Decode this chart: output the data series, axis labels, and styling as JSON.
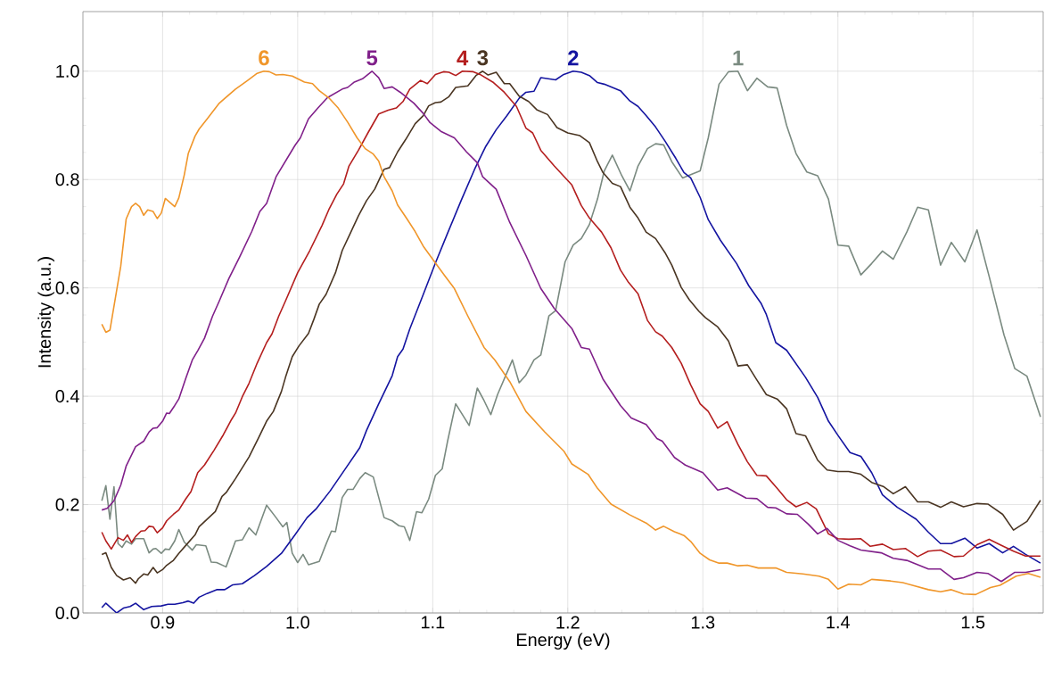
{
  "chart_data": {
    "type": "line",
    "xlabel": "Energy (eV)",
    "ylabel": "Intensity (a.u.)",
    "xlim": [
      0.841,
      1.552
    ],
    "ylim": [
      0,
      1.11
    ],
    "xticks": [
      0.9,
      {
        "value": 1.0,
        "label": "1.0"
      },
      1.1,
      1.2,
      1.3,
      1.4,
      1.5
    ],
    "yticks": [
      {
        "value": 0,
        "label": "0.0"
      },
      0.2,
      0.4,
      0.6,
      0.8,
      {
        "value": 1.0,
        "label": "1.0"
      }
    ],
    "grid": true,
    "marker": "none",
    "series": [
      {
        "name": "1",
        "color": "#7a8a80",
        "x": [
          0.855,
          0.858,
          0.861,
          0.864,
          0.867,
          0.87,
          0.873,
          0.877,
          0.88,
          0.886,
          0.89,
          0.893,
          0.895,
          0.899,
          0.902,
          0.905,
          0.909,
          0.912,
          0.916,
          0.922,
          0.925,
          0.932,
          0.936,
          0.94,
          0.947,
          0.954,
          0.959,
          0.964,
          0.969,
          0.977,
          0.984,
          0.989,
          0.992,
          0.996,
          1.0,
          1.004,
          1.008,
          1.016,
          1.021,
          1.025,
          1.028,
          1.033,
          1.037,
          1.041,
          1.046,
          1.05,
          1.056,
          1.064,
          1.07,
          1.075,
          1.079,
          1.083,
          1.088,
          1.092,
          1.097,
          1.102,
          1.107,
          1.111,
          1.117,
          1.127,
          1.133,
          1.138,
          1.143,
          1.148,
          1.159,
          1.164,
          1.169,
          1.175,
          1.18,
          1.186,
          1.191,
          1.198,
          1.204,
          1.21,
          1.216,
          1.222,
          1.227,
          1.233,
          1.24,
          1.246,
          1.252,
          1.259,
          1.265,
          1.271,
          1.277,
          1.285,
          1.291,
          1.298,
          1.304,
          1.312,
          1.319,
          1.326,
          1.333,
          1.34,
          1.348,
          1.355,
          1.362,
          1.369,
          1.377,
          1.385,
          1.393,
          1.4,
          1.408,
          1.417,
          1.425,
          1.433,
          1.441,
          1.451,
          1.459,
          1.467,
          1.476,
          1.484,
          1.494,
          1.503,
          1.512,
          1.523,
          1.531,
          1.54,
          1.55
        ],
        "values": [
          0.207,
          0.235,
          0.173,
          0.233,
          0.128,
          0.121,
          0.133,
          0.127,
          0.137,
          0.137,
          0.111,
          0.118,
          0.119,
          0.11,
          0.118,
          0.117,
          0.133,
          0.154,
          0.131,
          0.116,
          0.126,
          0.124,
          0.094,
          0.093,
          0.085,
          0.133,
          0.135,
          0.157,
          0.144,
          0.199,
          0.176,
          0.159,
          0.167,
          0.11,
          0.093,
          0.108,
          0.089,
          0.095,
          0.127,
          0.151,
          0.15,
          0.213,
          0.228,
          0.228,
          0.248,
          0.259,
          0.251,
          0.176,
          0.17,
          0.161,
          0.159,
          0.134,
          0.187,
          0.185,
          0.21,
          0.254,
          0.266,
          0.317,
          0.386,
          0.346,
          0.415,
          0.392,
          0.366,
          0.403,
          0.467,
          0.425,
          0.439,
          0.467,
          0.476,
          0.548,
          0.558,
          0.648,
          0.679,
          0.691,
          0.717,
          0.764,
          0.816,
          0.845,
          0.807,
          0.779,
          0.825,
          0.857,
          0.866,
          0.864,
          0.833,
          0.803,
          0.809,
          0.816,
          0.877,
          0.976,
          0.999,
          1.0,
          0.964,
          0.987,
          0.971,
          0.969,
          0.9,
          0.848,
          0.814,
          0.807,
          0.764,
          0.679,
          0.677,
          0.624,
          0.645,
          0.668,
          0.653,
          0.703,
          0.749,
          0.744,
          0.642,
          0.684,
          0.648,
          0.707,
          0.621,
          0.513,
          0.451,
          0.437,
          0.362
        ]
      },
      {
        "name": "2",
        "color": "#1414a0",
        "x": [
          0.855,
          0.858,
          0.862,
          0.866,
          0.871,
          0.876,
          0.88,
          0.886,
          0.892,
          0.899,
          0.904,
          0.909,
          0.915,
          0.919,
          0.923,
          0.927,
          0.933,
          0.94,
          0.946,
          0.952,
          0.959,
          0.968,
          0.977,
          0.988,
          0.998,
          1.007,
          1.014,
          1.024,
          1.035,
          1.046,
          1.051,
          1.06,
          1.07,
          1.074,
          1.078,
          1.083,
          1.093,
          1.102,
          1.111,
          1.121,
          1.131,
          1.139,
          1.147,
          1.155,
          1.164,
          1.169,
          1.175,
          1.18,
          1.191,
          1.197,
          1.204,
          1.21,
          1.216,
          1.222,
          1.227,
          1.239,
          1.246,
          1.252,
          1.258,
          1.265,
          1.272,
          1.28,
          1.286,
          1.291,
          1.298,
          1.304,
          1.313,
          1.325,
          1.334,
          1.343,
          1.347,
          1.354,
          1.362,
          1.376,
          1.385,
          1.393,
          1.4,
          1.409,
          1.417,
          1.425,
          1.433,
          1.444,
          1.458,
          1.467,
          1.476,
          1.484,
          1.494,
          1.503,
          1.512,
          1.522,
          1.53,
          1.539,
          1.55
        ],
        "values": [
          0.01,
          0.018,
          0.009,
          0,
          0.009,
          0.012,
          0.018,
          0.006,
          0.012,
          0.013,
          0.016,
          0.016,
          0.019,
          0.022,
          0.018,
          0.029,
          0.036,
          0.043,
          0.043,
          0.052,
          0.054,
          0.069,
          0.086,
          0.11,
          0.144,
          0.176,
          0.193,
          0.225,
          0.265,
          0.305,
          0.337,
          0.386,
          0.438,
          0.473,
          0.487,
          0.524,
          0.588,
          0.646,
          0.701,
          0.761,
          0.819,
          0.86,
          0.892,
          0.918,
          0.95,
          0.961,
          0.963,
          0.988,
          0.984,
          0.994,
          1.0,
          0.998,
          0.992,
          0.979,
          0.976,
          0.964,
          0.945,
          0.935,
          0.918,
          0.897,
          0.871,
          0.839,
          0.813,
          0.803,
          0.767,
          0.726,
          0.688,
          0.645,
          0.604,
          0.572,
          0.551,
          0.499,
          0.485,
          0.435,
          0.398,
          0.354,
          0.328,
          0.296,
          0.289,
          0.259,
          0.218,
          0.195,
          0.173,
          0.149,
          0.128,
          0.128,
          0.138,
          0.12,
          0.128,
          0.111,
          0.123,
          0.108,
          0.092
        ]
      },
      {
        "name": "3",
        "color": "#4a3522",
        "x": [
          0.855,
          0.858,
          0.862,
          0.866,
          0.871,
          0.876,
          0.88,
          0.882,
          0.886,
          0.889,
          0.893,
          0.896,
          0.9,
          0.903,
          0.908,
          0.912,
          0.918,
          0.924,
          0.927,
          0.933,
          0.939,
          0.944,
          0.947,
          0.954,
          0.959,
          0.964,
          0.971,
          0.977,
          0.982,
          0.988,
          0.991,
          0.996,
          1.001,
          1.008,
          1.012,
          1.016,
          1.021,
          1.028,
          1.033,
          1.039,
          1.045,
          1.051,
          1.057,
          1.064,
          1.068,
          1.074,
          1.08,
          1.087,
          1.093,
          1.097,
          1.102,
          1.106,
          1.112,
          1.117,
          1.126,
          1.132,
          1.137,
          1.141,
          1.147,
          1.153,
          1.157,
          1.164,
          1.171,
          1.177,
          1.185,
          1.192,
          1.2,
          1.209,
          1.216,
          1.222,
          1.226,
          1.233,
          1.239,
          1.246,
          1.252,
          1.258,
          1.265,
          1.272,
          1.277,
          1.284,
          1.29,
          1.297,
          1.302,
          1.311,
          1.319,
          1.326,
          1.333,
          1.34,
          1.347,
          1.355,
          1.362,
          1.369,
          1.376,
          1.385,
          1.392,
          1.4,
          1.408,
          1.417,
          1.425,
          1.434,
          1.441,
          1.45,
          1.459,
          1.467,
          1.476,
          1.484,
          1.493,
          1.503,
          1.511,
          1.522,
          1.53,
          1.54,
          1.55
        ],
        "values": [
          0.108,
          0.111,
          0.084,
          0.069,
          0.061,
          0.065,
          0.055,
          0.063,
          0.072,
          0.07,
          0.084,
          0.074,
          0.08,
          0.088,
          0.097,
          0.11,
          0.127,
          0.144,
          0.159,
          0.173,
          0.187,
          0.215,
          0.222,
          0.248,
          0.268,
          0.288,
          0.323,
          0.354,
          0.372,
          0.409,
          0.435,
          0.473,
          0.493,
          0.516,
          0.542,
          0.57,
          0.588,
          0.628,
          0.669,
          0.701,
          0.733,
          0.761,
          0.782,
          0.819,
          0.822,
          0.851,
          0.874,
          0.903,
          0.918,
          0.936,
          0.942,
          0.943,
          0.953,
          0.97,
          0.973,
          0.992,
          1.0,
          0.993,
          0.998,
          0.977,
          0.977,
          0.954,
          0.944,
          0.929,
          0.92,
          0.896,
          0.886,
          0.881,
          0.868,
          0.833,
          0.813,
          0.793,
          0.787,
          0.749,
          0.729,
          0.703,
          0.691,
          0.665,
          0.642,
          0.601,
          0.578,
          0.557,
          0.545,
          0.528,
          0.502,
          0.456,
          0.458,
          0.43,
          0.403,
          0.395,
          0.377,
          0.331,
          0.327,
          0.282,
          0.264,
          0.261,
          0.261,
          0.256,
          0.241,
          0.233,
          0.22,
          0.233,
          0.205,
          0.205,
          0.195,
          0.205,
          0.196,
          0.202,
          0.201,
          0.182,
          0.153,
          0.169,
          0.208
        ]
      },
      {
        "name": "4",
        "color": "#b41e1e",
        "x": [
          0.855,
          0.858,
          0.862,
          0.867,
          0.871,
          0.874,
          0.877,
          0.88,
          0.884,
          0.887,
          0.89,
          0.893,
          0.896,
          0.9,
          0.903,
          0.908,
          0.912,
          0.917,
          0.921,
          0.926,
          0.931,
          0.938,
          0.945,
          0.951,
          0.954,
          0.959,
          0.964,
          0.97,
          0.977,
          0.981,
          0.986,
          0.991,
          1.0,
          1.009,
          1.018,
          1.023,
          1.029,
          1.034,
          1.038,
          1.045,
          1.052,
          1.06,
          1.067,
          1.073,
          1.078,
          1.083,
          1.091,
          1.096,
          1.102,
          1.108,
          1.112,
          1.117,
          1.122,
          1.13,
          1.135,
          1.145,
          1.153,
          1.162,
          1.169,
          1.174,
          1.18,
          1.19,
          1.203,
          1.21,
          1.216,
          1.225,
          1.232,
          1.239,
          1.245,
          1.252,
          1.259,
          1.265,
          1.27,
          1.277,
          1.284,
          1.291,
          1.298,
          1.304,
          1.311,
          1.318,
          1.326,
          1.333,
          1.34,
          1.347,
          1.355,
          1.362,
          1.369,
          1.377,
          1.384,
          1.393,
          1.4,
          1.408,
          1.417,
          1.424,
          1.433,
          1.441,
          1.45,
          1.459,
          1.467,
          1.476,
          1.486,
          1.493,
          1.503,
          1.512,
          1.52,
          1.53,
          1.539,
          1.55
        ],
        "values": [
          0.149,
          0.133,
          0.118,
          0.139,
          0.134,
          0.144,
          0.13,
          0.141,
          0.151,
          0.152,
          0.16,
          0.159,
          0.148,
          0.157,
          0.17,
          0.182,
          0.19,
          0.21,
          0.224,
          0.259,
          0.273,
          0.3,
          0.329,
          0.357,
          0.369,
          0.399,
          0.424,
          0.461,
          0.499,
          0.515,
          0.548,
          0.576,
          0.628,
          0.669,
          0.715,
          0.744,
          0.773,
          0.792,
          0.825,
          0.854,
          0.886,
          0.921,
          0.928,
          0.932,
          0.944,
          0.967,
          0.983,
          0.977,
          0.994,
          0.999,
          0.998,
          0.992,
          1.0,
          0.999,
          0.994,
          0.979,
          0.961,
          0.935,
          0.895,
          0.886,
          0.854,
          0.825,
          0.79,
          0.752,
          0.729,
          0.703,
          0.674,
          0.633,
          0.61,
          0.589,
          0.54,
          0.519,
          0.511,
          0.49,
          0.461,
          0.421,
          0.386,
          0.372,
          0.341,
          0.353,
          0.311,
          0.279,
          0.254,
          0.253,
          0.23,
          0.209,
          0.196,
          0.204,
          0.192,
          0.146,
          0.137,
          0.136,
          0.137,
          0.123,
          0.127,
          0.117,
          0.119,
          0.104,
          0.114,
          0.116,
          0.104,
          0.105,
          0.126,
          0.136,
          0.126,
          0.114,
          0.105,
          0.105
        ]
      },
      {
        "name": "5",
        "color": "#80208a",
        "x": [
          0.855,
          0.859,
          0.864,
          0.869,
          0.873,
          0.88,
          0.886,
          0.89,
          0.893,
          0.896,
          0.9,
          0.903,
          0.905,
          0.909,
          0.912,
          0.917,
          0.922,
          0.926,
          0.931,
          0.937,
          0.942,
          0.949,
          0.957,
          0.966,
          0.972,
          0.977,
          0.984,
          0.991,
          0.998,
          1.002,
          1.008,
          1.015,
          1.022,
          1.033,
          1.037,
          1.042,
          1.048,
          1.055,
          1.06,
          1.064,
          1.07,
          1.076,
          1.086,
          1.093,
          1.098,
          1.106,
          1.116,
          1.125,
          1.133,
          1.137,
          1.147,
          1.157,
          1.169,
          1.18,
          1.19,
          1.203,
          1.21,
          1.216,
          1.226,
          1.239,
          1.247,
          1.258,
          1.266,
          1.27,
          1.279,
          1.287,
          1.3,
          1.311,
          1.318,
          1.332,
          1.34,
          1.348,
          1.354,
          1.362,
          1.37,
          1.378,
          1.385,
          1.392,
          1.4,
          1.409,
          1.417,
          1.432,
          1.441,
          1.451,
          1.467,
          1.476,
          1.486,
          1.493,
          1.503,
          1.511,
          1.521,
          1.531,
          1.539,
          1.55
        ],
        "values": [
          0.19,
          0.193,
          0.207,
          0.236,
          0.271,
          0.307,
          0.317,
          0.334,
          0.341,
          0.342,
          0.354,
          0.369,
          0.368,
          0.383,
          0.395,
          0.432,
          0.467,
          0.484,
          0.507,
          0.548,
          0.576,
          0.617,
          0.657,
          0.704,
          0.741,
          0.756,
          0.805,
          0.834,
          0.863,
          0.877,
          0.912,
          0.932,
          0.951,
          0.967,
          0.97,
          0.98,
          0.986,
          1.0,
          0.988,
          0.968,
          0.971,
          0.961,
          0.941,
          0.922,
          0.905,
          0.889,
          0.877,
          0.851,
          0.831,
          0.805,
          0.782,
          0.721,
          0.66,
          0.599,
          0.562,
          0.525,
          0.49,
          0.487,
          0.432,
          0.383,
          0.36,
          0.348,
          0.322,
          0.317,
          0.287,
          0.273,
          0.259,
          0.227,
          0.231,
          0.212,
          0.211,
          0.195,
          0.194,
          0.183,
          0.182,
          0.164,
          0.146,
          0.156,
          0.134,
          0.124,
          0.116,
          0.111,
          0.101,
          0.097,
          0.081,
          0.081,
          0.062,
          0.065,
          0.075,
          0.073,
          0.058,
          0.075,
          0.075,
          0.08
        ]
      },
      {
        "name": "6",
        "color": "#f0962a",
        "x": [
          0.855,
          0.858,
          0.861,
          0.869,
          0.873,
          0.877,
          0.88,
          0.883,
          0.886,
          0.889,
          0.893,
          0.896,
          0.899,
          0.902,
          0.909,
          0.912,
          0.916,
          0.919,
          0.924,
          0.927,
          0.933,
          0.942,
          0.954,
          0.963,
          0.97,
          0.975,
          0.979,
          0.984,
          0.989,
          0.996,
          1.0,
          1.005,
          1.011,
          1.016,
          1.023,
          1.03,
          1.037,
          1.044,
          1.05,
          1.056,
          1.06,
          1.064,
          1.07,
          1.074,
          1.081,
          1.087,
          1.093,
          1.102,
          1.109,
          1.116,
          1.126,
          1.132,
          1.138,
          1.146,
          1.157,
          1.169,
          1.183,
          1.197,
          1.203,
          1.215,
          1.222,
          1.232,
          1.246,
          1.258,
          1.265,
          1.271,
          1.279,
          1.286,
          1.291,
          1.298,
          1.305,
          1.312,
          1.318,
          1.326,
          1.333,
          1.341,
          1.354,
          1.362,
          1.374,
          1.386,
          1.393,
          1.4,
          1.408,
          1.417,
          1.425,
          1.439,
          1.448,
          1.467,
          1.476,
          1.484,
          1.493,
          1.502,
          1.513,
          1.52,
          1.532,
          1.541,
          1.55
        ],
        "values": [
          0.533,
          0.518,
          0.522,
          0.64,
          0.727,
          0.75,
          0.756,
          0.75,
          0.734,
          0.744,
          0.741,
          0.728,
          0.738,
          0.765,
          0.75,
          0.766,
          0.808,
          0.848,
          0.88,
          0.893,
          0.912,
          0.941,
          0.967,
          0.983,
          0.996,
          1.0,
          0.999,
          0.993,
          0.994,
          0.991,
          0.986,
          0.98,
          0.977,
          0.964,
          0.951,
          0.932,
          0.906,
          0.877,
          0.857,
          0.847,
          0.834,
          0.805,
          0.779,
          0.753,
          0.727,
          0.704,
          0.677,
          0.646,
          0.622,
          0.599,
          0.548,
          0.519,
          0.49,
          0.467,
          0.427,
          0.372,
          0.334,
          0.299,
          0.275,
          0.256,
          0.23,
          0.201,
          0.181,
          0.166,
          0.153,
          0.16,
          0.15,
          0.143,
          0.132,
          0.11,
          0.098,
          0.092,
          0.092,
          0.087,
          0.088,
          0.083,
          0.083,
          0.075,
          0.072,
          0.068,
          0.062,
          0.044,
          0.053,
          0.052,
          0.062,
          0.059,
          0.056,
          0.043,
          0.039,
          0.043,
          0.035,
          0.034,
          0.047,
          0.051,
          0.068,
          0.073,
          0.066
        ]
      }
    ]
  }
}
